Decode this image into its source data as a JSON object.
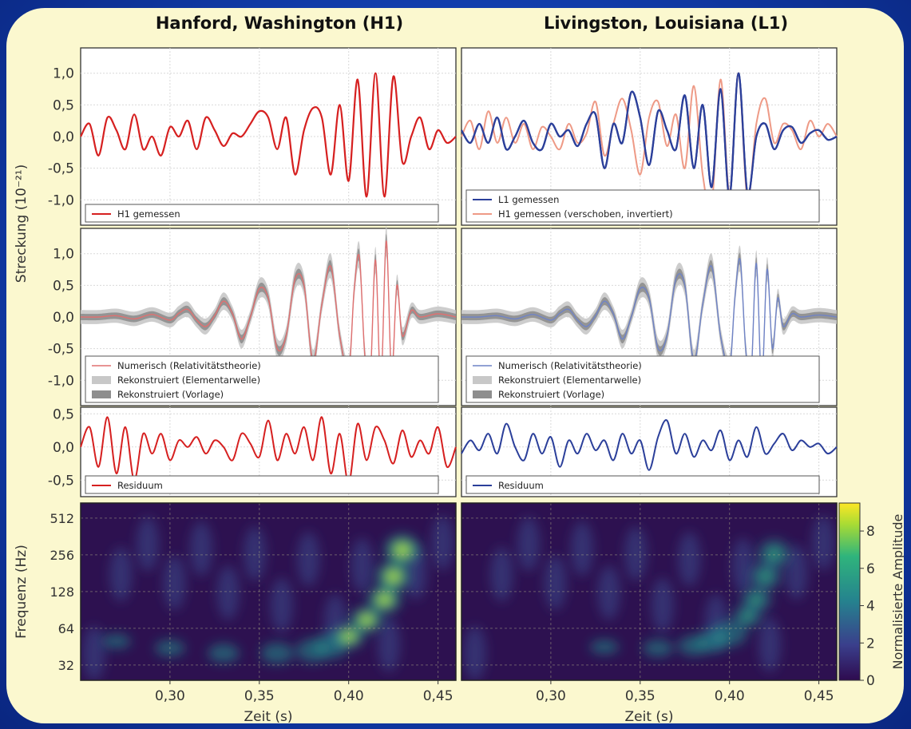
{
  "titles": {
    "left": "Hanford, Washington (H1)",
    "right": "Livingston, Louisiana (L1)"
  },
  "colors": {
    "h1": "#d62020",
    "l1": "#2b3f9a",
    "h1_shifted": "#ee9a86",
    "nr_h1": "#e07070",
    "nr_l1": "#6f83c6",
    "wavelet_band": "#c8c8c8",
    "template_band": "#8e8e8e",
    "panel_bg": "#ffffff",
    "frame": "#333333"
  },
  "chart_data": [
    {
      "type": "line",
      "panel": "strain-h1",
      "ylabel": "Streckung (10⁻²¹)",
      "ylim": [
        -1.4,
        1.4
      ],
      "yticks": [
        "1,0",
        "0,5",
        "0,0",
        "-0,5",
        "-1,0"
      ],
      "xlim": [
        0.25,
        0.46
      ],
      "grid": true,
      "legend_placement": "bottom",
      "series": [
        {
          "name": "H1 gemessen",
          "role": "h1",
          "x": [
            0.25,
            0.255,
            0.26,
            0.265,
            0.27,
            0.275,
            0.28,
            0.285,
            0.29,
            0.295,
            0.3,
            0.305,
            0.31,
            0.315,
            0.32,
            0.325,
            0.33,
            0.335,
            0.34,
            0.345,
            0.35,
            0.355,
            0.36,
            0.365,
            0.37,
            0.375,
            0.38,
            0.385,
            0.39,
            0.395,
            0.4,
            0.405,
            0.41,
            0.415,
            0.42,
            0.425,
            0.43,
            0.435,
            0.44,
            0.445,
            0.45,
            0.455,
            0.46
          ],
          "y": [
            0.0,
            0.2,
            -0.3,
            0.3,
            0.1,
            -0.2,
            0.35,
            -0.2,
            0.0,
            -0.3,
            0.15,
            0.0,
            0.25,
            -0.2,
            0.3,
            0.1,
            -0.15,
            0.05,
            0.0,
            0.2,
            0.4,
            0.3,
            -0.2,
            0.3,
            -0.6,
            0.1,
            0.45,
            0.3,
            -0.6,
            0.5,
            -0.7,
            0.9,
            -0.95,
            1.0,
            -0.95,
            0.95,
            -0.4,
            0.0,
            0.3,
            -0.2,
            0.1,
            -0.1,
            0.0
          ]
        }
      ]
    },
    {
      "type": "line",
      "panel": "strain-l1",
      "ylim": [
        -1.4,
        1.4
      ],
      "xlim": [
        0.25,
        0.46
      ],
      "grid": true,
      "legend_placement": "bottom",
      "series": [
        {
          "name": "L1 gemessen",
          "role": "l1",
          "x": [
            0.25,
            0.255,
            0.26,
            0.265,
            0.27,
            0.275,
            0.28,
            0.285,
            0.29,
            0.295,
            0.3,
            0.305,
            0.31,
            0.315,
            0.32,
            0.325,
            0.33,
            0.335,
            0.34,
            0.345,
            0.35,
            0.355,
            0.36,
            0.365,
            0.37,
            0.375,
            0.38,
            0.385,
            0.39,
            0.395,
            0.4,
            0.405,
            0.41,
            0.415,
            0.42,
            0.425,
            0.43,
            0.435,
            0.44,
            0.445,
            0.45,
            0.455,
            0.46
          ],
          "y": [
            0.1,
            -0.1,
            0.2,
            -0.1,
            0.3,
            -0.2,
            0.0,
            0.25,
            -0.1,
            -0.2,
            0.2,
            0.0,
            0.1,
            -0.15,
            0.2,
            0.35,
            -0.5,
            0.2,
            -0.1,
            0.7,
            0.3,
            -0.45,
            0.4,
            0.1,
            -0.2,
            0.65,
            -0.5,
            0.5,
            -0.8,
            0.75,
            -0.95,
            1.0,
            -0.9,
            0.0,
            0.2,
            -0.2,
            0.1,
            0.15,
            -0.1,
            0.05,
            0.1,
            -0.05,
            0.0
          ]
        },
        {
          "name": "H1 gemessen (verschoben, invertiert)",
          "role": "h1_shifted",
          "x": [
            0.25,
            0.255,
            0.26,
            0.265,
            0.27,
            0.275,
            0.28,
            0.285,
            0.29,
            0.295,
            0.3,
            0.305,
            0.31,
            0.315,
            0.32,
            0.325,
            0.33,
            0.335,
            0.34,
            0.345,
            0.35,
            0.355,
            0.36,
            0.365,
            0.37,
            0.375,
            0.38,
            0.385,
            0.39,
            0.395,
            0.4,
            0.405,
            0.41,
            0.415,
            0.42,
            0.425,
            0.43,
            0.435,
            0.44,
            0.445,
            0.45,
            0.455,
            0.46
          ],
          "y": [
            0.0,
            0.25,
            -0.2,
            0.4,
            -0.1,
            0.3,
            -0.1,
            0.2,
            -0.2,
            0.15,
            0.0,
            -0.2,
            0.2,
            -0.1,
            0.05,
            0.55,
            -0.3,
            0.2,
            0.6,
            0.1,
            -0.6,
            0.3,
            0.55,
            -0.15,
            0.35,
            -0.5,
            0.8,
            -0.6,
            -1.1,
            0.9,
            -0.9,
            1.0,
            -1.0,
            0.2,
            0.6,
            -0.1,
            0.2,
            0.1,
            -0.2,
            0.25,
            0.0,
            0.2,
            0.0
          ]
        }
      ]
    },
    {
      "type": "line",
      "panel": "recon-h1",
      "ylim": [
        -1.4,
        1.4
      ],
      "xlim": [
        0.25,
        0.46
      ],
      "grid": true,
      "legend_placement": "bottom",
      "series": [
        {
          "name": "Numerisch (Relativitätstheorie)",
          "role": "nr_h1",
          "x": [
            0.25,
            0.26,
            0.27,
            0.28,
            0.29,
            0.3,
            0.305,
            0.31,
            0.315,
            0.32,
            0.325,
            0.33,
            0.335,
            0.34,
            0.345,
            0.35,
            0.355,
            0.36,
            0.365,
            0.37,
            0.375,
            0.38,
            0.385,
            0.39,
            0.395,
            0.4,
            0.403,
            0.406,
            0.409,
            0.412,
            0.415,
            0.418,
            0.421,
            0.424,
            0.427,
            0.43,
            0.435,
            0.44,
            0.45,
            0.46
          ],
          "y": [
            0.0,
            0.0,
            0.02,
            -0.03,
            0.04,
            -0.05,
            0.06,
            0.12,
            -0.05,
            -0.15,
            0.02,
            0.25,
            0.05,
            -0.35,
            0.0,
            0.45,
            0.3,
            -0.5,
            -0.3,
            0.6,
            0.5,
            -0.7,
            0.2,
            0.8,
            -0.3,
            -0.85,
            0.4,
            0.95,
            -0.6,
            -1.0,
            0.9,
            -1.1,
            1.2,
            -0.9,
            0.5,
            -0.3,
            0.1,
            0.0,
            0.05,
            0.0
          ]
        },
        {
          "name": "Rekonstruiert (Elementarwelle)",
          "role": "wavelet_band"
        },
        {
          "name": "Rekonstruiert (Vorlage)",
          "role": "template_band"
        }
      ]
    },
    {
      "type": "line",
      "panel": "recon-l1",
      "ylim": [
        -1.4,
        1.4
      ],
      "xlim": [
        0.25,
        0.46
      ],
      "grid": true,
      "legend_placement": "bottom",
      "series": [
        {
          "name": "Numerisch (Relativitätstheorie)",
          "role": "nr_l1",
          "x": [
            0.25,
            0.26,
            0.27,
            0.28,
            0.29,
            0.3,
            0.305,
            0.31,
            0.315,
            0.32,
            0.325,
            0.33,
            0.335,
            0.34,
            0.345,
            0.35,
            0.355,
            0.36,
            0.365,
            0.37,
            0.375,
            0.38,
            0.385,
            0.39,
            0.395,
            0.4,
            0.403,
            0.406,
            0.409,
            0.412,
            0.415,
            0.418,
            0.421,
            0.424,
            0.427,
            0.43,
            0.435,
            0.44,
            0.45,
            0.46
          ],
          "y": [
            0.0,
            0.0,
            0.02,
            -0.03,
            0.04,
            -0.05,
            0.06,
            0.12,
            -0.05,
            -0.15,
            0.02,
            0.25,
            0.05,
            -0.35,
            0.0,
            0.45,
            0.3,
            -0.5,
            -0.3,
            0.6,
            0.5,
            -0.7,
            0.2,
            0.8,
            -0.3,
            -0.8,
            0.3,
            0.9,
            -0.5,
            -0.95,
            0.85,
            -1.05,
            0.75,
            -0.5,
            0.3,
            -0.15,
            0.05,
            0.0,
            0.03,
            0.0
          ]
        },
        {
          "name": "Rekonstruiert (Elementarwelle)",
          "role": "wavelet_band"
        },
        {
          "name": "Rekonstruiert (Vorlage)",
          "role": "template_band"
        }
      ]
    },
    {
      "type": "line",
      "panel": "residual-h1",
      "ylim": [
        -0.75,
        0.6
      ],
      "yticks": [
        "0,5",
        "0,0",
        "-0,5"
      ],
      "xlim": [
        0.25,
        0.46
      ],
      "grid": true,
      "legend_placement": "bottom",
      "series": [
        {
          "name": "Residuum",
          "role": "h1",
          "x": [
            0.25,
            0.255,
            0.26,
            0.265,
            0.27,
            0.275,
            0.28,
            0.285,
            0.29,
            0.295,
            0.3,
            0.305,
            0.31,
            0.315,
            0.32,
            0.325,
            0.33,
            0.335,
            0.34,
            0.345,
            0.35,
            0.355,
            0.36,
            0.365,
            0.37,
            0.375,
            0.38,
            0.385,
            0.39,
            0.395,
            0.4,
            0.405,
            0.41,
            0.415,
            0.42,
            0.425,
            0.43,
            0.435,
            0.44,
            0.445,
            0.45,
            0.455,
            0.46
          ],
          "y": [
            0.0,
            0.3,
            -0.3,
            0.45,
            -0.4,
            0.3,
            -0.5,
            0.2,
            -0.1,
            0.2,
            -0.2,
            0.1,
            0.0,
            0.15,
            -0.1,
            0.1,
            0.0,
            -0.2,
            0.2,
            0.05,
            -0.15,
            0.4,
            -0.2,
            0.2,
            -0.1,
            0.3,
            -0.2,
            0.45,
            -0.4,
            0.2,
            -0.55,
            0.35,
            -0.2,
            0.3,
            0.1,
            -0.25,
            0.25,
            -0.15,
            0.1,
            -0.1,
            0.3,
            -0.3,
            0.0
          ]
        }
      ]
    },
    {
      "type": "line",
      "panel": "residual-l1",
      "ylim": [
        -0.75,
        0.6
      ],
      "xlim": [
        0.25,
        0.46
      ],
      "grid": true,
      "legend_placement": "bottom",
      "series": [
        {
          "name": "Residuum",
          "role": "l1",
          "x": [
            0.25,
            0.255,
            0.26,
            0.265,
            0.27,
            0.275,
            0.28,
            0.285,
            0.29,
            0.295,
            0.3,
            0.305,
            0.31,
            0.315,
            0.32,
            0.325,
            0.33,
            0.335,
            0.34,
            0.345,
            0.35,
            0.355,
            0.36,
            0.365,
            0.37,
            0.375,
            0.38,
            0.385,
            0.39,
            0.395,
            0.4,
            0.405,
            0.41,
            0.415,
            0.42,
            0.425,
            0.43,
            0.435,
            0.44,
            0.445,
            0.45,
            0.455,
            0.46
          ],
          "y": [
            -0.1,
            0.1,
            -0.05,
            0.2,
            -0.1,
            0.35,
            0.0,
            -0.2,
            0.2,
            -0.1,
            0.15,
            -0.3,
            0.1,
            -0.1,
            0.2,
            -0.05,
            0.1,
            -0.2,
            0.2,
            -0.1,
            0.1,
            -0.35,
            0.15,
            0.4,
            -0.1,
            0.2,
            -0.15,
            0.1,
            -0.05,
            0.25,
            -0.2,
            0.1,
            -0.15,
            0.3,
            -0.1,
            0.05,
            0.2,
            -0.05,
            0.1,
            0.0,
            0.05,
            -0.1,
            0.0
          ]
        }
      ]
    },
    {
      "type": "heatmap",
      "panel": "spectrogram-h1",
      "xlabel": "Zeit (s)",
      "ylabel": "Frequenz (Hz)",
      "xlim": [
        0.25,
        0.46
      ],
      "xticks": [
        "0,30",
        "0,35",
        "0,40",
        "0,45"
      ],
      "yscale": "log2",
      "ylim": [
        24,
        680
      ],
      "yticks": [
        "512",
        "256",
        "128",
        "64",
        "32"
      ],
      "track": {
        "t": [
          0.27,
          0.3,
          0.33,
          0.36,
          0.38,
          0.39,
          0.4,
          0.41,
          0.42,
          0.425,
          0.43
        ],
        "f": [
          50,
          44,
          40,
          40,
          42,
          46,
          55,
          75,
          110,
          170,
          280
        ],
        "peak": 9.5
      }
    },
    {
      "type": "heatmap",
      "panel": "spectrogram-l1",
      "xlabel": "Zeit (s)",
      "xlim": [
        0.25,
        0.46
      ],
      "xticks": [
        "0,30",
        "0,35",
        "0,40",
        "0,45"
      ],
      "yscale": "log2",
      "ylim": [
        24,
        680
      ],
      "track": {
        "t": [
          0.33,
          0.36,
          0.38,
          0.39,
          0.4,
          0.41,
          0.415,
          0.42,
          0.425
        ],
        "f": [
          45,
          44,
          46,
          50,
          58,
          80,
          110,
          170,
          260
        ],
        "peak": 7.5
      }
    },
    {
      "type": "colorbar",
      "label": "Normalisierte Amplitude",
      "range": [
        0,
        9.5
      ],
      "ticks": [
        "8",
        "6",
        "4",
        "2",
        "0"
      ]
    }
  ]
}
